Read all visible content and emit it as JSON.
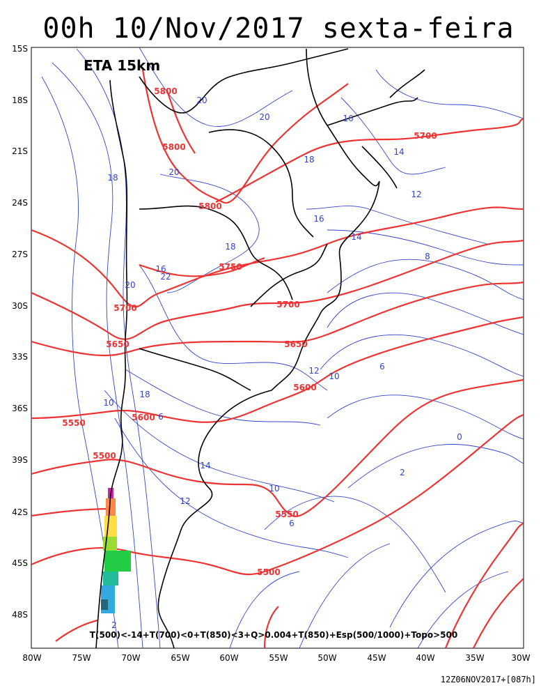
{
  "title": "00h 10/Nov/2017 sexta-feira",
  "model_label": "ETA 15km",
  "footer_run": "12Z06NOV2017+[087h]",
  "legend_formula": "T(500)<-14+T(700)<0+T(850)<3+Q>0.004+T(850)+Esp(500/1000)+Topo>500",
  "lat_labels": [
    "15S",
    "18S",
    "21S",
    "24S",
    "27S",
    "30S",
    "33S",
    "36S",
    "39S",
    "42S",
    "45S",
    "48S"
  ],
  "lon_labels": [
    "80W",
    "75W",
    "70W",
    "65W",
    "60W",
    "55W",
    "50W",
    "45W",
    "40W",
    "35W",
    "30W"
  ],
  "thickness_labels": [
    "5800",
    "5800",
    "5800",
    "5700",
    "5750",
    "5700",
    "5700",
    "5650",
    "5650",
    "5600",
    "5600",
    "5550",
    "5500",
    "5550",
    "5500"
  ],
  "temp_labels": [
    "20",
    "20",
    "16",
    "14",
    "12",
    "18",
    "18",
    "20",
    "22",
    "20",
    "18",
    "16",
    "14",
    "12",
    "10",
    "8",
    "6",
    "18",
    "16",
    "10",
    "14",
    "12",
    "10",
    "6",
    "2",
    "0",
    "6",
    "2"
  ],
  "colors": {
    "thickness": "#ee3333",
    "temperature": "#3344cc",
    "coast": "#000000",
    "shading": [
      "#cc22aa",
      "#ff8844",
      "#ffdd44",
      "#99dd33",
      "#22cc44",
      "#22bb99",
      "#33aadd"
    ]
  }
}
